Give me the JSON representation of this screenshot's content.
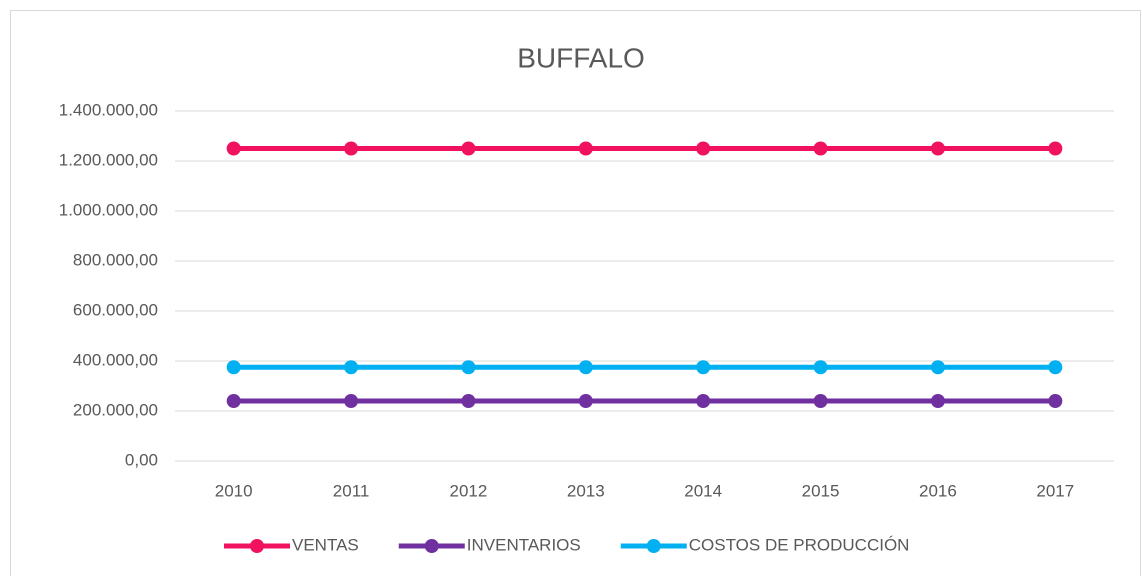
{
  "chart_data": {
    "type": "line",
    "title": "BUFFALO",
    "categories": [
      "2010",
      "2011",
      "2012",
      "2013",
      "2014",
      "2015",
      "2016",
      "2017"
    ],
    "series": [
      {
        "name": "VENTAS",
        "color": "#f0125f",
        "values": [
          1250000,
          1250000,
          1250000,
          1250000,
          1250000,
          1250000,
          1250000,
          1250000
        ]
      },
      {
        "name": "INVENTARIOS",
        "color": "#7030a0",
        "values": [
          240000,
          240000,
          240000,
          240000,
          240000,
          240000,
          240000,
          240000
        ]
      },
      {
        "name": "COSTOS DE PRODUCCIÓN",
        "color": "#00b0f0",
        "values": [
          375000,
          375000,
          375000,
          375000,
          375000,
          375000,
          375000,
          375000
        ]
      }
    ],
    "ylim": [
      0,
      1400000
    ],
    "yticks": [
      {
        "value": 0,
        "label": "0,00"
      },
      {
        "value": 200000,
        "label": "200.000,00"
      },
      {
        "value": 400000,
        "label": "400.000,00"
      },
      {
        "value": 600000,
        "label": "600.000,00"
      },
      {
        "value": 800000,
        "label": "800.000,00"
      },
      {
        "value": 1000000,
        "label": "1.000.000,00"
      },
      {
        "value": 1200000,
        "label": "1.200.000,00"
      },
      {
        "value": 1400000,
        "label": "1.400.000,00"
      }
    ],
    "grid": true,
    "legend": "bottom"
  }
}
